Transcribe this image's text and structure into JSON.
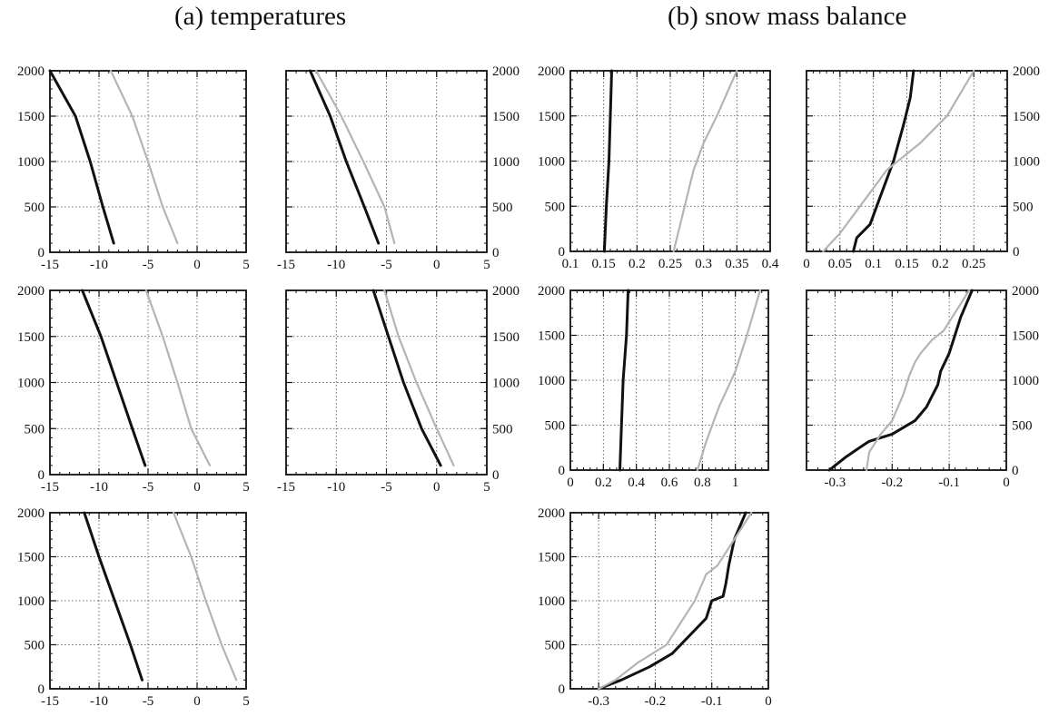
{
  "titles": {
    "a": "(a) temperatures",
    "b": "(b) snow mass balance"
  },
  "colors": {
    "black": "#111111",
    "gray": "#b4b4b4",
    "grid": "#444444"
  },
  "chart_data": [
    {
      "id": "temp-1",
      "type": "line",
      "xlim": [
        -15,
        5
      ],
      "ylim": [
        0,
        2000
      ],
      "xticks": [
        -15,
        -10,
        -5,
        0,
        5
      ],
      "yticks": [
        0,
        500,
        1000,
        1500,
        2000
      ],
      "xticklabels": [
        "-15",
        "-10",
        "-5",
        "0",
        "5"
      ],
      "yticklabels": [
        "0",
        "500",
        "1000",
        "1500",
        "2000"
      ],
      "ytick_side": "left",
      "grid": true,
      "series": [
        {
          "color": "black",
          "x": [
            -8.5,
            -9.6,
            -10.9,
            -12.4,
            -15.0
          ],
          "y": [
            100,
            500,
            1000,
            1500,
            2000
          ]
        },
        {
          "color": "gray",
          "x": [
            -2.0,
            -3.5,
            -5.0,
            -6.6,
            -8.8
          ],
          "y": [
            100,
            500,
            1000,
            1500,
            2000
          ]
        }
      ]
    },
    {
      "id": "temp-2",
      "type": "line",
      "xlim": [
        -15,
        5
      ],
      "ylim": [
        0,
        2000
      ],
      "xticks": [
        -15,
        -10,
        -5,
        0,
        5
      ],
      "yticks": [
        0,
        500,
        1000,
        1500,
        2000
      ],
      "xticklabels": [
        "-15",
        "-10",
        "-5",
        "0",
        "5"
      ],
      "yticklabels": [
        "0",
        "500",
        "1000",
        "1500",
        "2000"
      ],
      "ytick_side": "right",
      "grid": true,
      "series": [
        {
          "color": "black",
          "x": [
            -5.8,
            -7.2,
            -9.0,
            -10.6,
            -12.6
          ],
          "y": [
            100,
            500,
            1000,
            1500,
            2000
          ]
        },
        {
          "color": "gray",
          "x": [
            -4.2,
            -5.2,
            -7.3,
            -9.5,
            -12.0
          ],
          "y": [
            100,
            500,
            1000,
            1500,
            2000
          ]
        }
      ]
    },
    {
      "id": "temp-3",
      "type": "line",
      "xlim": [
        -15,
        5
      ],
      "ylim": [
        0,
        2000
      ],
      "xticks": [
        -15,
        -10,
        -5,
        0,
        5
      ],
      "yticks": [
        0,
        500,
        1000,
        1500,
        2000
      ],
      "xticklabels": [
        "-15",
        "-10",
        "-5",
        "0",
        "5"
      ],
      "yticklabels": [
        "0",
        "500",
        "1000",
        "1500",
        "2000"
      ],
      "ytick_side": "left",
      "grid": true,
      "series": [
        {
          "color": "black",
          "x": [
            -5.3,
            -6.6,
            -8.2,
            -9.8,
            -11.7
          ],
          "y": [
            100,
            500,
            1000,
            1500,
            2000
          ]
        },
        {
          "color": "gray",
          "x": [
            1.3,
            -0.6,
            -2.0,
            -3.5,
            -5.2
          ],
          "y": [
            100,
            500,
            1000,
            1500,
            2000
          ]
        }
      ]
    },
    {
      "id": "temp-4",
      "type": "line",
      "xlim": [
        -15,
        5
      ],
      "ylim": [
        0,
        2000
      ],
      "xticks": [
        -15,
        -10,
        -5,
        0,
        5
      ],
      "yticks": [
        0,
        500,
        1000,
        1500,
        2000
      ],
      "xticklabels": [
        "-15",
        "-10",
        "-5",
        "0",
        "5"
      ],
      "yticklabels": [
        "0",
        "500",
        "1000",
        "1500",
        "2000"
      ],
      "ytick_side": "right",
      "grid": true,
      "series": [
        {
          "color": "black",
          "x": [
            0.4,
            -1.5,
            -3.3,
            -4.8,
            -6.3
          ],
          "y": [
            100,
            500,
            1000,
            1500,
            2000
          ]
        },
        {
          "color": "gray",
          "x": [
            1.7,
            0.0,
            -2.0,
            -3.8,
            -5.2
          ],
          "y": [
            100,
            500,
            1000,
            1500,
            2000
          ]
        }
      ]
    },
    {
      "id": "temp-5",
      "type": "line",
      "xlim": [
        -15,
        5
      ],
      "ylim": [
        0,
        2000
      ],
      "xticks": [
        -15,
        -10,
        -5,
        0,
        5
      ],
      "yticks": [
        0,
        500,
        1000,
        1500,
        2000
      ],
      "xticklabels": [
        "-15",
        "-10",
        "-5",
        "0",
        "5"
      ],
      "yticklabels": [
        "0",
        "500",
        "1000",
        "1500",
        "2000"
      ],
      "ytick_side": "left",
      "grid": true,
      "series": [
        {
          "color": "black",
          "x": [
            -5.6,
            -6.8,
            -8.4,
            -10.0,
            -11.5
          ],
          "y": [
            100,
            500,
            1000,
            1500,
            2000
          ]
        },
        {
          "color": "gray",
          "x": [
            4.0,
            2.5,
            0.9,
            -0.6,
            -2.4
          ],
          "y": [
            100,
            500,
            1000,
            1500,
            2000
          ]
        }
      ]
    },
    {
      "id": "snow-1",
      "type": "line",
      "xlim": [
        0.1,
        0.4
      ],
      "ylim": [
        0,
        2000
      ],
      "xticks": [
        0.1,
        0.15,
        0.2,
        0.25,
        0.3,
        0.35,
        0.4
      ],
      "yticks": [
        0,
        500,
        1000,
        1500,
        2000
      ],
      "xticklabels": [
        "0.1",
        "0.15",
        "0.2",
        "0.25",
        "0.3",
        "0.35",
        "0.4"
      ],
      "yticklabels": [
        "0",
        "500",
        "1000",
        "1500",
        "2000"
      ],
      "ytick_side": "left",
      "grid": true,
      "series": [
        {
          "color": "black",
          "x": [
            0.151,
            0.154,
            0.158,
            0.16,
            0.162
          ],
          "y": [
            0,
            500,
            1000,
            1500,
            2000
          ]
        },
        {
          "color": "gray",
          "x": [
            0.255,
            0.265,
            0.275,
            0.285,
            0.3,
            0.32,
            0.335,
            0.35
          ],
          "y": [
            0,
            300,
            600,
            900,
            1200,
            1500,
            1750,
            2000
          ]
        }
      ]
    },
    {
      "id": "snow-2",
      "type": "line",
      "xlim": [
        0,
        0.3
      ],
      "ylim": [
        0,
        2000
      ],
      "xticks": [
        0,
        0.05,
        0.1,
        0.15,
        0.2,
        0.25
      ],
      "yticks": [
        0,
        500,
        1000,
        1500,
        2000
      ],
      "xticklabels": [
        "0",
        "0.05",
        "0.1",
        "0.15",
        "0.2",
        "0.25"
      ],
      "yticklabels": [
        "0",
        "500",
        "1000",
        "1500",
        "2000"
      ],
      "ytick_side": "right",
      "grid": true,
      "series": [
        {
          "color": "black",
          "x": [
            0.07,
            0.075,
            0.095,
            0.11,
            0.13,
            0.145,
            0.155,
            0.16
          ],
          "y": [
            0,
            150,
            300,
            600,
            1000,
            1400,
            1700,
            2000
          ]
        },
        {
          "color": "gray",
          "x": [
            0.025,
            0.05,
            0.08,
            0.12,
            0.17,
            0.21,
            0.23,
            0.25
          ],
          "y": [
            0,
            200,
            500,
            900,
            1200,
            1500,
            1750,
            2000
          ]
        }
      ]
    },
    {
      "id": "snow-3",
      "type": "line",
      "xlim": [
        0,
        1.2
      ],
      "ylim": [
        0,
        2000
      ],
      "xticks": [
        0,
        0.2,
        0.4,
        0.6,
        0.8,
        1
      ],
      "yticks": [
        0,
        500,
        1000,
        1500,
        2000
      ],
      "xticklabels": [
        "0",
        "0.2",
        "0.4",
        "0.6",
        "0.8",
        "1"
      ],
      "yticklabels": [
        "0",
        "500",
        "1000",
        "1500",
        "2000"
      ],
      "ytick_side": "left",
      "grid": true,
      "series": [
        {
          "color": "black",
          "x": [
            0.3,
            0.31,
            0.32,
            0.34,
            0.35
          ],
          "y": [
            0,
            500,
            1000,
            1500,
            2000
          ]
        },
        {
          "color": "gray",
          "x": [
            0.77,
            0.82,
            0.9,
            1.0,
            1.07,
            1.15
          ],
          "y": [
            0,
            300,
            700,
            1100,
            1500,
            2000
          ]
        }
      ]
    },
    {
      "id": "snow-4",
      "type": "line",
      "xlim": [
        -0.35,
        0
      ],
      "ylim": [
        0,
        2000
      ],
      "xticks": [
        -0.3,
        -0.2,
        -0.1,
        0
      ],
      "yticks": [
        0,
        500,
        1000,
        1500,
        2000
      ],
      "xticklabels": [
        "-0.3",
        "-0.2",
        "-0.1",
        "0"
      ],
      "yticklabels": [
        "0",
        "500",
        "1000",
        "1500",
        "2000"
      ],
      "ytick_side": "right",
      "grid": true,
      "series": [
        {
          "color": "black",
          "x": [
            -0.31,
            -0.28,
            -0.25,
            -0.24,
            -0.2,
            -0.16,
            -0.14,
            -0.12,
            -0.115,
            -0.1,
            -0.09,
            -0.08,
            -0.06
          ],
          "y": [
            0,
            150,
            280,
            320,
            400,
            550,
            700,
            950,
            1100,
            1300,
            1500,
            1700,
            2000
          ]
        },
        {
          "color": "gray",
          "x": [
            -0.245,
            -0.24,
            -0.22,
            -0.2,
            -0.19,
            -0.18,
            -0.17,
            -0.16,
            -0.15,
            -0.13,
            -0.11,
            -0.09,
            -0.065
          ],
          "y": [
            0,
            200,
            400,
            550,
            700,
            850,
            1050,
            1200,
            1300,
            1450,
            1550,
            1750,
            2000
          ]
        }
      ]
    },
    {
      "id": "snow-5",
      "type": "line",
      "xlim": [
        -0.35,
        0
      ],
      "ylim": [
        0,
        2000
      ],
      "xticks": [
        -0.3,
        -0.2,
        -0.1,
        0
      ],
      "yticks": [
        0,
        500,
        1000,
        1500,
        2000
      ],
      "xticklabels": [
        "-0.3",
        "-0.2",
        "-0.1",
        "0"
      ],
      "yticklabels": [
        "0",
        "500",
        "1000",
        "1500",
        "2000"
      ],
      "ytick_side": "left",
      "grid": true,
      "series": [
        {
          "color": "black",
          "x": [
            -0.3,
            -0.26,
            -0.21,
            -0.17,
            -0.14,
            -0.11,
            -0.1,
            -0.08,
            -0.075,
            -0.07,
            -0.06,
            -0.04
          ],
          "y": [
            0,
            100,
            250,
            400,
            600,
            800,
            1000,
            1050,
            1200,
            1400,
            1700,
            2000
          ]
        },
        {
          "color": "gray",
          "x": [
            -0.3,
            -0.27,
            -0.23,
            -0.18,
            -0.16,
            -0.13,
            -0.11,
            -0.09,
            -0.08,
            -0.07,
            -0.05,
            -0.03
          ],
          "y": [
            0,
            100,
            300,
            500,
            700,
            1000,
            1300,
            1400,
            1500,
            1600,
            1800,
            2000
          ]
        }
      ]
    }
  ]
}
